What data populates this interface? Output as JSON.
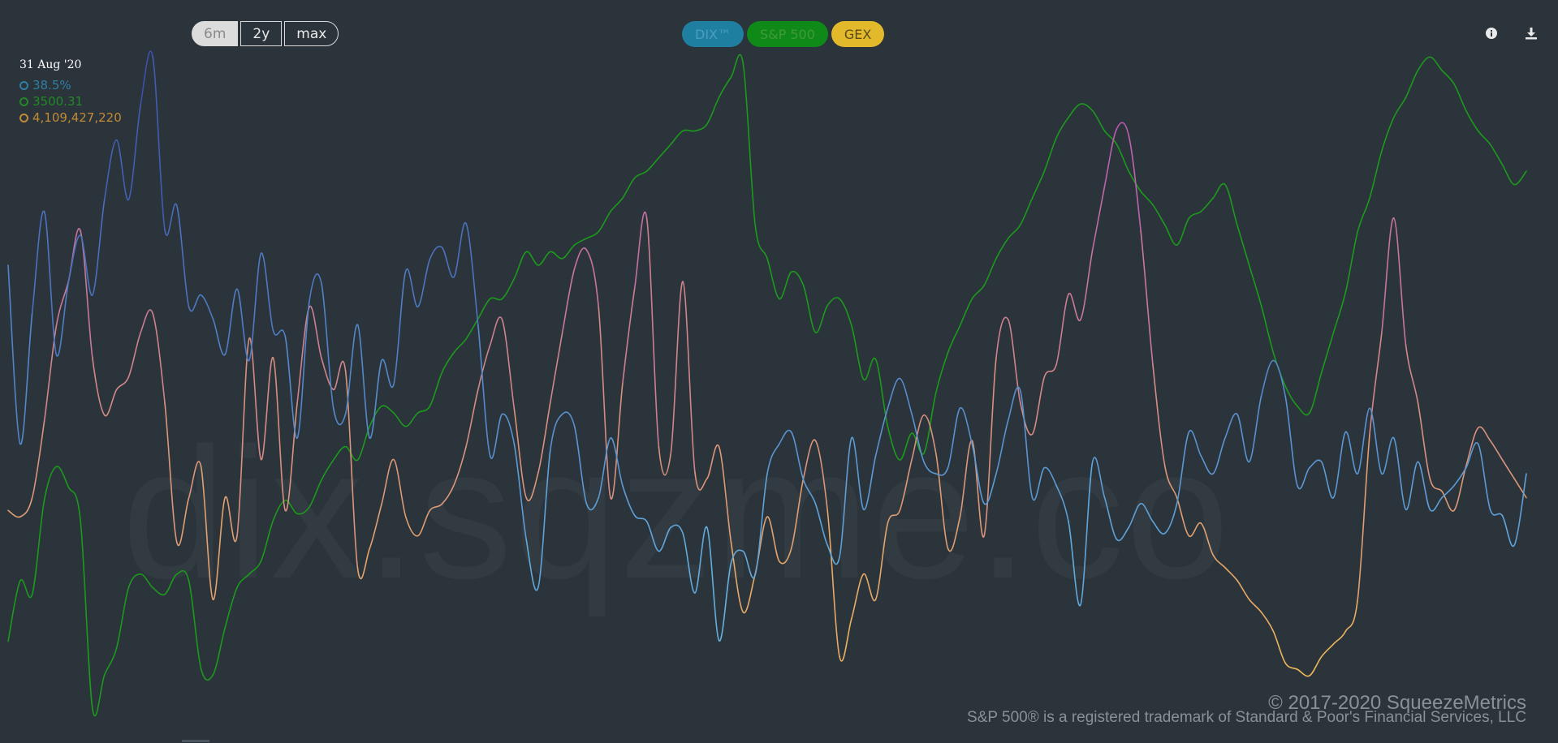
{
  "range_buttons": [
    {
      "label": "6m",
      "active": true
    },
    {
      "label": "2y",
      "active": false
    },
    {
      "label": "max",
      "active": false
    }
  ],
  "series_toggles": [
    {
      "label": "DIX™",
      "bg": "#1f7fa1",
      "fg": "#4a9fbf"
    },
    {
      "label": "S&P 500",
      "bg": "#0f8a19",
      "fg": "#3f9a3a"
    },
    {
      "label": "GEX",
      "bg": "#e2b92a",
      "fg": "#5c4a1a"
    }
  ],
  "legend": {
    "date": "31 Aug '20",
    "dix": "38.5%",
    "spx": "3500.31",
    "gex": "4,109,427,220"
  },
  "colors": {
    "background": "#2b333b",
    "dix_legend": "#2f7fa3",
    "spx_legend": "#228a25",
    "gex_legend": "#c28a36",
    "spx_line": "#1c9a1c",
    "dix_low": "#6fc8ec",
    "dix_high": "#3b4aa8",
    "gex_low": "#f4c150",
    "gex_high": "#b050c0"
  },
  "icons": {
    "info": "info-icon",
    "download": "download-icon"
  },
  "watermark": "dix.sqzme.co",
  "footer": {
    "copyright": "© 2017-2020 SqueezeMetrics",
    "trademark": "S&P 500® is a registered trademark of Standard & Poor's Financial Services, LLC"
  },
  "chart_data": {
    "type": "line",
    "n_points": 127,
    "series": [
      {
        "name": "DIX™",
        "values_rel": [
          0.63,
          0.33,
          0.55,
          0.72,
          0.48,
          0.6,
          0.68,
          0.58,
          0.74,
          0.84,
          0.74,
          0.9,
          0.98,
          0.69,
          0.73,
          0.56,
          0.58,
          0.54,
          0.48,
          0.59,
          0.47,
          0.65,
          0.52,
          0.51,
          0.34,
          0.57,
          0.6,
          0.39,
          0.38,
          0.53,
          0.34,
          0.47,
          0.43,
          0.62,
          0.56,
          0.64,
          0.66,
          0.61,
          0.7,
          0.53,
          0.31,
          0.38,
          0.33,
          0.17,
          0.09,
          0.32,
          0.38,
          0.36,
          0.23,
          0.24,
          0.34,
          0.26,
          0.21,
          0.2,
          0.15,
          0.19,
          0.18,
          0.08,
          0.19,
          0.0,
          0.13,
          0.15,
          0.11,
          0.28,
          0.33,
          0.35,
          0.27,
          0.23,
          0.16,
          0.14,
          0.34,
          0.22,
          0.31,
          0.39,
          0.44,
          0.38,
          0.3,
          0.28,
          0.29,
          0.39,
          0.33,
          0.23,
          0.28,
          0.37,
          0.42,
          0.24,
          0.29,
          0.26,
          0.2,
          0.06,
          0.3,
          0.24,
          0.17,
          0.19,
          0.23,
          0.2,
          0.18,
          0.23,
          0.35,
          0.31,
          0.28,
          0.34,
          0.38,
          0.3,
          0.41,
          0.47,
          0.41,
          0.26,
          0.29,
          0.3,
          0.24,
          0.35,
          0.28,
          0.39,
          0.28,
          0.34,
          0.22,
          0.3,
          0.22,
          0.24,
          0.26,
          0.29,
          0.33,
          0.22,
          0.21,
          0.16,
          0.28
        ]
      },
      {
        "name": "S&P 500",
        "values_rel": [
          0.12,
          0.21,
          0.19,
          0.33,
          0.38,
          0.35,
          0.3,
          0.02,
          0.07,
          0.11,
          0.2,
          0.22,
          0.2,
          0.19,
          0.22,
          0.21,
          0.08,
          0.07,
          0.14,
          0.2,
          0.22,
          0.24,
          0.3,
          0.33,
          0.31,
          0.32,
          0.36,
          0.39,
          0.41,
          0.39,
          0.44,
          0.47,
          0.46,
          0.44,
          0.46,
          0.47,
          0.52,
          0.55,
          0.57,
          0.6,
          0.63,
          0.63,
          0.66,
          0.7,
          0.68,
          0.7,
          0.69,
          0.71,
          0.72,
          0.73,
          0.76,
          0.78,
          0.81,
          0.82,
          0.84,
          0.86,
          0.88,
          0.88,
          0.89,
          0.93,
          0.96,
          0.98,
          0.74,
          0.69,
          0.63,
          0.67,
          0.65,
          0.58,
          0.62,
          0.63,
          0.59,
          0.51,
          0.54,
          0.44,
          0.39,
          0.43,
          0.4,
          0.49,
          0.55,
          0.59,
          0.63,
          0.65,
          0.69,
          0.72,
          0.74,
          0.78,
          0.82,
          0.87,
          0.9,
          0.92,
          0.91,
          0.88,
          0.86,
          0.82,
          0.79,
          0.77,
          0.74,
          0.71,
          0.75,
          0.76,
          0.78,
          0.8,
          0.74,
          0.68,
          0.62,
          0.55,
          0.5,
          0.47,
          0.46,
          0.52,
          0.58,
          0.64,
          0.73,
          0.78,
          0.85,
          0.9,
          0.93,
          0.97,
          0.99,
          0.97,
          0.95,
          0.91,
          0.88,
          0.86,
          0.83,
          0.8,
          0.82
        ]
      },
      {
        "name": "GEX",
        "values_rel": [
          0.28,
          0.27,
          0.3,
          0.42,
          0.57,
          0.64,
          0.72,
          0.52,
          0.43,
          0.47,
          0.49,
          0.56,
          0.59,
          0.45,
          0.23,
          0.3,
          0.35,
          0.14,
          0.3,
          0.24,
          0.55,
          0.36,
          0.52,
          0.28,
          0.45,
          0.6,
          0.52,
          0.47,
          0.5,
          0.19,
          0.22,
          0.29,
          0.36,
          0.27,
          0.24,
          0.28,
          0.29,
          0.32,
          0.38,
          0.47,
          0.54,
          0.58,
          0.44,
          0.3,
          0.34,
          0.45,
          0.56,
          0.66,
          0.69,
          0.6,
          0.3,
          0.48,
          0.63,
          0.74,
          0.38,
          0.37,
          0.64,
          0.34,
          0.33,
          0.38,
          0.23,
          0.12,
          0.18,
          0.27,
          0.2,
          0.22,
          0.33,
          0.39,
          0.28,
          0.05,
          0.11,
          0.18,
          0.14,
          0.26,
          0.28,
          0.36,
          0.43,
          0.37,
          0.22,
          0.27,
          0.39,
          0.24,
          0.52,
          0.58,
          0.45,
          0.4,
          0.49,
          0.51,
          0.62,
          0.58,
          0.69,
          0.79,
          0.88,
          0.87,
          0.72,
          0.51,
          0.35,
          0.3,
          0.24,
          0.26,
          0.21,
          0.19,
          0.17,
          0.14,
          0.12,
          0.09,
          0.04,
          0.03,
          0.02,
          0.05,
          0.07,
          0.09,
          0.14,
          0.4,
          0.56,
          0.74,
          0.54,
          0.45,
          0.33,
          0.31,
          0.28,
          0.35,
          0.41,
          0.39,
          0.36,
          0.33,
          0.3
        ]
      }
    ]
  }
}
